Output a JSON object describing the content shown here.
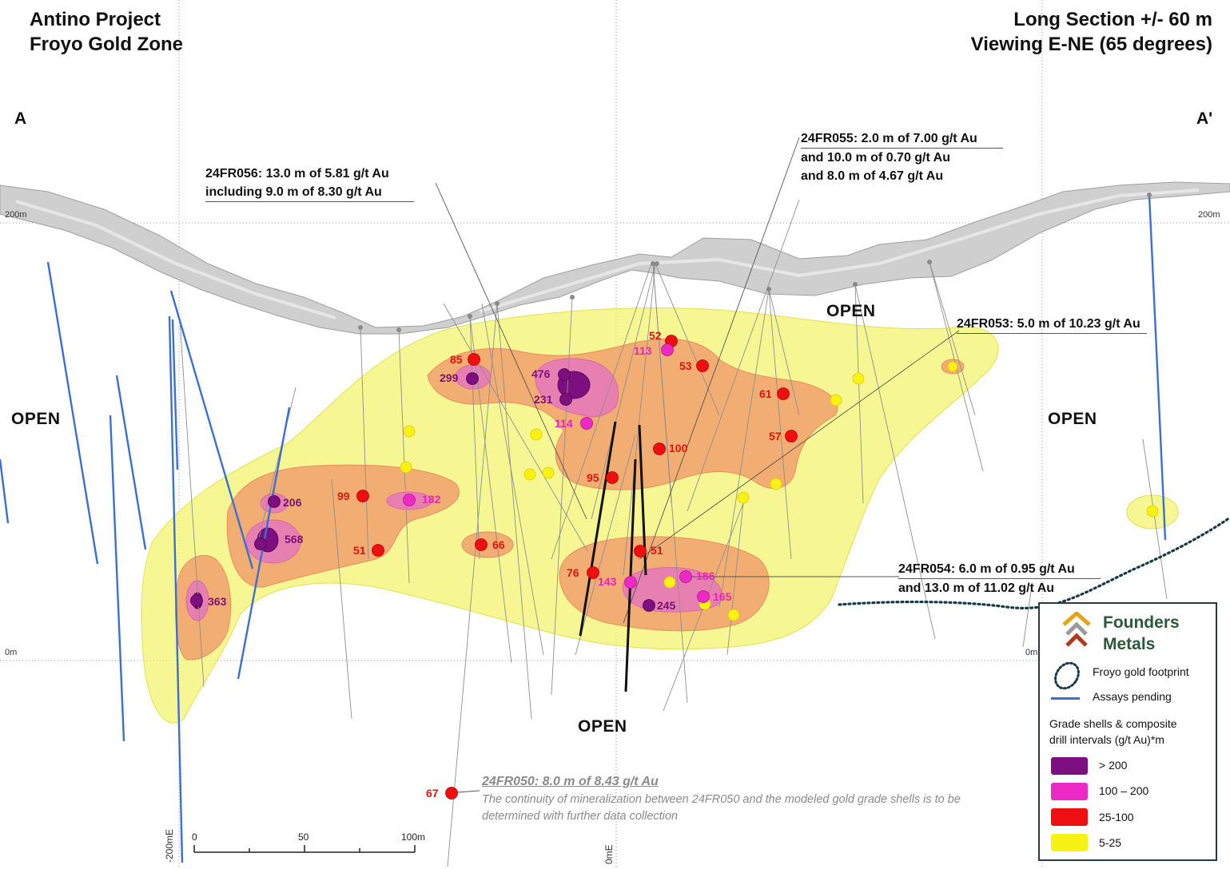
{
  "title_left": {
    "line1": "Antino Project",
    "line2": "Froyo Gold Zone"
  },
  "title_right": {
    "line1": "Long Section +/- 60 m",
    "line2": "Viewing E-NE (65 degrees)"
  },
  "section_ends": {
    "left": "A",
    "right": "A'"
  },
  "open_labels": [
    "OPEN",
    "OPEN",
    "OPEN",
    "OPEN"
  ],
  "elevation_labels": {
    "top_left": "200m",
    "top_right": "200m",
    "zero_left": "0m",
    "zero_right": "0m"
  },
  "easting_labels": {
    "left": "-200mE",
    "center": "0mE"
  },
  "scale_bar": {
    "labels": [
      "0",
      "50",
      "100m"
    ]
  },
  "annotations": {
    "fr056": {
      "line1": "24FR056: 13.0 m of 5.81 g/t Au",
      "line2": "including 9.0 m of 8.30 g/t Au"
    },
    "fr055": {
      "line1": "24FR055: 2.0 m of 7.00 g/t Au",
      "line2": "and 10.0 m of 0.70 g/t Au",
      "line3": "and 8.0 m of 4.67 g/t Au"
    },
    "fr053": {
      "line1": "24FR053: 5.0 m of 10.23 g/t Au"
    },
    "fr054": {
      "line1": "24FR054: 6.0 m of 0.95 g/t Au",
      "line2": "and 13.0 m of 11.02 g/t Au"
    },
    "fr050": {
      "title": "24FR050: 8.0 m of 8.43 g/t Au",
      "body": "The continuity of mineralization between 24FR050 and the modeled gold grade shells is to be determined with further data collection"
    }
  },
  "grade_values": {
    "v85": "85",
    "v299": "299",
    "v476": "476",
    "v231": "231",
    "v114": "114",
    "v52": "52",
    "v113": "113",
    "v53": "53",
    "v61": "61",
    "v57": "57",
    "v100": "100",
    "v95": "95",
    "v99": "99",
    "v182": "182",
    "v206": "206",
    "v568": "568",
    "v51a": "51",
    "v66": "66",
    "v363": "363",
    "v51b": "51",
    "v76": "76",
    "v143": "143",
    "v186": "186",
    "v165": "165",
    "v245": "245",
    "v67": "67"
  },
  "legend": {
    "logo_line1": "Founders",
    "logo_line2": "Metals",
    "footprint": "Froyo gold footprint",
    "assays_pending": "Assays pending",
    "grade_title_line1": "Grade shells & composite",
    "grade_title_line2": "drill intervals (g/t Au)*m",
    "classes": [
      {
        "label": "> 200",
        "color": "#7d0f80"
      },
      {
        "label": "100 – 200",
        "color": "#ee2ac6"
      },
      {
        "label": "25-100",
        "color": "#ee1010"
      },
      {
        "label": "5-25",
        "color": "#f7f214"
      }
    ]
  },
  "colors": {
    "shell_5_25": "#f2f26a",
    "shell_25_100": "#f0a06c",
    "shell_100_200": "#e57ab8",
    "shell_200": "#7d0f80",
    "assays_pending": "#3a6fd8",
    "topography": "#c8c8c8"
  }
}
